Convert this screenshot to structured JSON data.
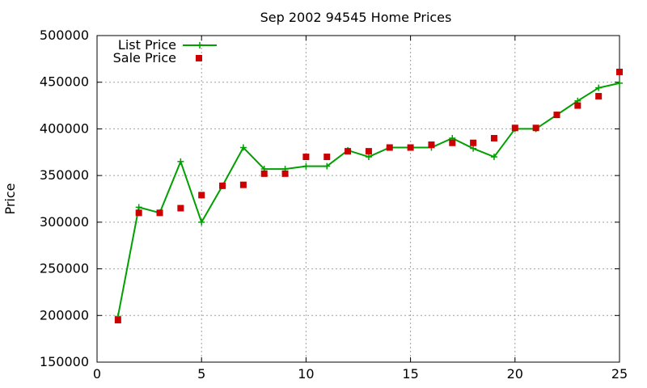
{
  "chart_data": {
    "type": "line",
    "title": "Sep 2002 94545 Home Prices",
    "xlabel": "",
    "ylabel": "Price",
    "xlim": [
      0,
      25
    ],
    "ylim": [
      150000,
      500000
    ],
    "xticks": [
      0,
      5,
      10,
      15,
      20,
      25
    ],
    "yticks": [
      150000,
      200000,
      250000,
      300000,
      350000,
      400000,
      450000,
      500000
    ],
    "grid": true,
    "legend_position": "top-left",
    "colors": {
      "list": "#00a000",
      "sale": "#cc0000"
    },
    "series": [
      {
        "name": "List Price",
        "style": "line-with-plus-markers",
        "x": [
          1,
          2,
          3,
          4,
          5,
          6,
          7,
          8,
          9,
          10,
          11,
          12,
          13,
          14,
          15,
          16,
          17,
          18,
          19,
          20,
          21,
          22,
          23,
          24,
          25
        ],
        "values": [
          199000,
          316000,
          310000,
          365000,
          300000,
          339000,
          380000,
          357000,
          357000,
          360000,
          360000,
          377000,
          370000,
          380000,
          380000,
          380000,
          390000,
          379000,
          370000,
          400000,
          400000,
          415000,
          430000,
          444000,
          449000
        ]
      },
      {
        "name": "Sale Price",
        "style": "square-markers",
        "x": [
          1,
          2,
          3,
          4,
          5,
          6,
          7,
          8,
          9,
          10,
          11,
          12,
          13,
          14,
          15,
          16,
          17,
          18,
          19,
          20,
          21,
          22,
          23,
          24,
          25
        ],
        "values": [
          195000,
          310000,
          310000,
          315000,
          329000,
          339000,
          340000,
          352000,
          352000,
          370000,
          370000,
          376000,
          376000,
          380000,
          380000,
          383000,
          385000,
          385000,
          390000,
          401000,
          401000,
          415000,
          425000,
          435000,
          461000
        ]
      }
    ]
  }
}
